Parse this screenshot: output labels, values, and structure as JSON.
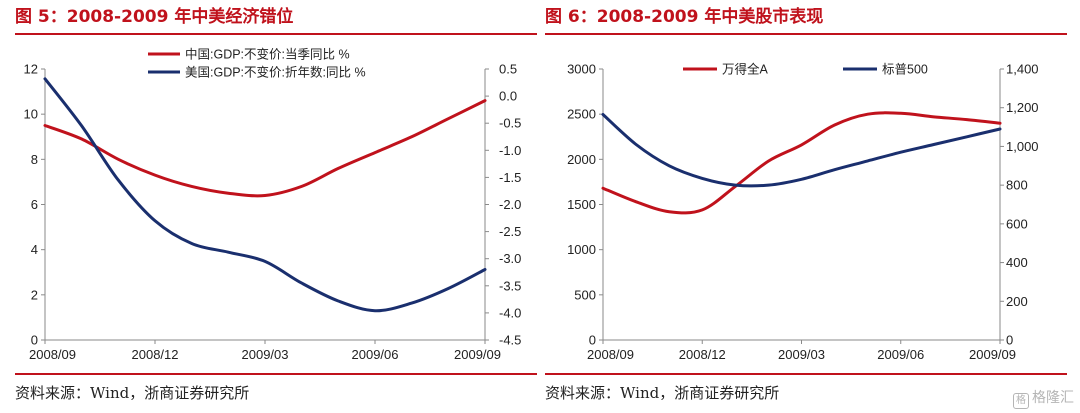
{
  "figures": [
    {
      "title": "图 5：2008-2009 年中美经济错位",
      "source": "资料来源：Wind，浙商证券研究所"
    },
    {
      "title": "图 6：2008-2009 年中美股市表现",
      "source": "资料来源：Wind，浙商证券研究所"
    }
  ],
  "watermark": {
    "icon": "格",
    "text": "格隆汇"
  },
  "colors": {
    "red": "#c0121c",
    "navy": "#1a2f6e",
    "axis": "#8a8a8a"
  },
  "chart_data": [
    {
      "type": "line",
      "title": "2008-2009 年中美经济错位",
      "x": [
        0,
        1,
        2,
        3,
        4,
        5,
        6,
        7,
        8,
        9,
        10,
        11,
        12
      ],
      "xticks": [
        0,
        3,
        6,
        9,
        12
      ],
      "categories": [
        "2008/09",
        "2008/12",
        "2009/03",
        "2009/06",
        "2009/09"
      ],
      "left_axis": {
        "range": [
          0,
          12
        ],
        "ticks": [
          "0",
          "2",
          "4",
          "6",
          "8",
          "10",
          "12"
        ],
        "tick_values": [
          0,
          2,
          4,
          6,
          8,
          10,
          12
        ]
      },
      "right_axis": {
        "range": [
          -4.5,
          0.5
        ],
        "ticks": [
          "0.5",
          "0.0",
          "-0.5",
          "-1.0",
          "-1.5",
          "-2.0",
          "-2.5",
          "-3.0",
          "-3.5",
          "-4.0",
          "-4.5"
        ],
        "tick_values": [
          0.5,
          0.0,
          -0.5,
          -1.0,
          -1.5,
          -2.0,
          -2.5,
          -3.0,
          -3.5,
          -4.0,
          -4.5
        ]
      },
      "legend_position": "top-center",
      "series": [
        {
          "name": "中国:GDP:不变价:当季同比 %",
          "axis": "left",
          "color": "#c0121c",
          "values": [
            9.5,
            8.9,
            8.0,
            7.3,
            6.8,
            6.5,
            6.4,
            6.8,
            7.6,
            8.3,
            9.0,
            9.8,
            10.6
          ]
        },
        {
          "name": "美国:GDP:不变价:折年数:同比 %",
          "axis": "right",
          "color": "#1a2f6e",
          "values": [
            0.32,
            -0.55,
            -1.55,
            -2.3,
            -2.72,
            -2.88,
            -3.05,
            -3.45,
            -3.78,
            -3.96,
            -3.82,
            -3.55,
            -3.2
          ]
        }
      ]
    },
    {
      "type": "line",
      "title": "2008-2009 年中美股市表现",
      "x": [
        0,
        1,
        2,
        3,
        4,
        5,
        6,
        7,
        8,
        9,
        10,
        11,
        12
      ],
      "xticks": [
        0,
        3,
        6,
        9,
        12
      ],
      "categories": [
        "2008/09",
        "2008/12",
        "2009/03",
        "2009/06",
        "2009/09"
      ],
      "left_axis": {
        "range": [
          0,
          3000
        ],
        "ticks": [
          "0",
          "500",
          "1000",
          "1500",
          "2000",
          "2500",
          "3000"
        ],
        "tick_values": [
          0,
          500,
          1000,
          1500,
          2000,
          2500,
          3000
        ]
      },
      "right_axis": {
        "range": [
          0,
          1400
        ],
        "ticks": [
          "0",
          "200",
          "400",
          "600",
          "800",
          "1,000",
          "1,200",
          "1,400"
        ],
        "tick_values": [
          0,
          200,
          400,
          600,
          800,
          1000,
          1200,
          1400
        ]
      },
      "legend_position": "top-center",
      "series": [
        {
          "name": "万得全A",
          "axis": "left",
          "color": "#c0121c",
          "values": [
            1680,
            1530,
            1420,
            1440,
            1700,
            1980,
            2160,
            2380,
            2500,
            2510,
            2470,
            2440,
            2400
          ]
        },
        {
          "name": "标普500",
          "axis": "right",
          "color": "#1a2f6e",
          "values": [
            1165,
            1010,
            900,
            835,
            800,
            800,
            830,
            880,
            925,
            970,
            1010,
            1050,
            1090
          ]
        }
      ]
    }
  ]
}
